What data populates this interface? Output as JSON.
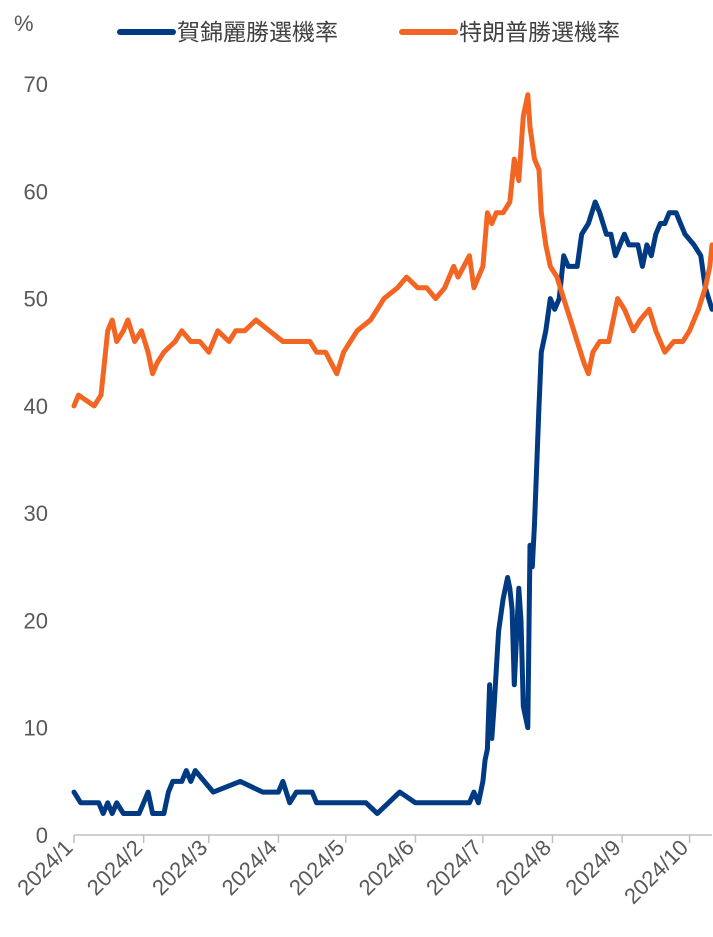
{
  "chart_data": {
    "type": "line",
    "title": "",
    "ylabel": "%",
    "xlabel": "",
    "ylim": [
      0,
      70
    ],
    "yticks": [
      "0",
      "10",
      "20",
      "30",
      "40",
      "50",
      "60",
      "70"
    ],
    "categories": [
      "2024/1",
      "2024/2",
      "2024/3",
      "2024/4",
      "2024/5",
      "2024/6",
      "2024/7",
      "2024/8",
      "2024/9",
      "2024/10"
    ],
    "grid": false,
    "legend_position": "top",
    "series": [
      {
        "name": "賀錦麗勝選機率",
        "color": "#003A82",
        "points": [
          [
            "2024-01-01",
            4
          ],
          [
            "2024-01-04",
            3
          ],
          [
            "2024-01-12",
            3
          ],
          [
            "2024-01-14",
            2
          ],
          [
            "2024-01-16",
            3
          ],
          [
            "2024-01-18",
            2
          ],
          [
            "2024-01-20",
            3
          ],
          [
            "2024-01-23",
            2
          ],
          [
            "2024-01-30",
            2
          ],
          [
            "2024-02-01",
            3
          ],
          [
            "2024-02-03",
            4
          ],
          [
            "2024-02-05",
            2
          ],
          [
            "2024-02-10",
            2
          ],
          [
            "2024-02-12",
            4
          ],
          [
            "2024-02-14",
            5
          ],
          [
            "2024-02-18",
            5
          ],
          [
            "2024-02-20",
            6
          ],
          [
            "2024-02-22",
            5
          ],
          [
            "2024-02-24",
            6
          ],
          [
            "2024-02-28",
            5
          ],
          [
            "2024-03-03",
            4
          ],
          [
            "2024-03-15",
            5
          ],
          [
            "2024-03-25",
            4
          ],
          [
            "2024-04-01",
            4
          ],
          [
            "2024-04-03",
            5
          ],
          [
            "2024-04-06",
            3
          ],
          [
            "2024-04-09",
            4
          ],
          [
            "2024-04-16",
            4
          ],
          [
            "2024-04-18",
            3
          ],
          [
            "2024-05-01",
            3
          ],
          [
            "2024-05-10",
            3
          ],
          [
            "2024-05-15",
            2
          ],
          [
            "2024-05-20",
            3
          ],
          [
            "2024-05-25",
            4
          ],
          [
            "2024-06-01",
            3
          ],
          [
            "2024-06-10",
            3
          ],
          [
            "2024-06-15",
            3
          ],
          [
            "2024-06-25",
            3
          ],
          [
            "2024-06-27",
            4
          ],
          [
            "2024-06-29",
            3
          ],
          [
            "2024-07-01",
            5
          ],
          [
            "2024-07-02",
            7
          ],
          [
            "2024-07-03",
            8
          ],
          [
            "2024-07-04",
            14
          ],
          [
            "2024-07-05",
            9
          ],
          [
            "2024-07-06",
            12
          ],
          [
            "2024-07-08",
            19
          ],
          [
            "2024-07-10",
            22
          ],
          [
            "2024-07-12",
            24
          ],
          [
            "2024-07-13",
            23
          ],
          [
            "2024-07-14",
            21
          ],
          [
            "2024-07-15",
            14
          ],
          [
            "2024-07-17",
            23
          ],
          [
            "2024-07-18",
            20
          ],
          [
            "2024-07-19",
            12
          ],
          [
            "2024-07-21",
            10
          ],
          [
            "2024-07-22",
            27
          ],
          [
            "2024-07-23",
            25
          ],
          [
            "2024-07-24",
            29
          ],
          [
            "2024-07-26",
            40
          ],
          [
            "2024-07-27",
            45
          ],
          [
            "2024-07-29",
            47
          ],
          [
            "2024-07-31",
            50
          ],
          [
            "2024-08-02",
            49
          ],
          [
            "2024-08-04",
            50
          ],
          [
            "2024-08-06",
            54
          ],
          [
            "2024-08-08",
            53
          ],
          [
            "2024-08-12",
            53
          ],
          [
            "2024-08-14",
            56
          ],
          [
            "2024-08-17",
            57
          ],
          [
            "2024-08-20",
            59
          ],
          [
            "2024-08-22",
            58
          ],
          [
            "2024-08-25",
            56
          ],
          [
            "2024-08-27",
            56
          ],
          [
            "2024-08-29",
            54
          ],
          [
            "2024-08-31",
            55
          ],
          [
            "2024-09-02",
            56
          ],
          [
            "2024-09-04",
            55
          ],
          [
            "2024-09-08",
            55
          ],
          [
            "2024-09-10",
            53
          ],
          [
            "2024-09-12",
            55
          ],
          [
            "2024-09-14",
            54
          ],
          [
            "2024-09-16",
            56
          ],
          [
            "2024-09-18",
            57
          ],
          [
            "2024-09-20",
            57
          ],
          [
            "2024-09-22",
            58
          ],
          [
            "2024-09-25",
            58
          ],
          [
            "2024-09-27",
            57
          ],
          [
            "2024-09-29",
            56
          ],
          [
            "2024-10-03",
            55
          ],
          [
            "2024-10-06",
            54
          ],
          [
            "2024-10-08",
            51
          ],
          [
            "2024-10-11",
            49
          ]
        ]
      },
      {
        "name": "特朗普勝選機率",
        "color": "#F26522",
        "points": [
          [
            "2024-01-01",
            40
          ],
          [
            "2024-01-03",
            41
          ],
          [
            "2024-01-10",
            40
          ],
          [
            "2024-01-13",
            41
          ],
          [
            "2024-01-15",
            45
          ],
          [
            "2024-01-16",
            47
          ],
          [
            "2024-01-18",
            48
          ],
          [
            "2024-01-20",
            46
          ],
          [
            "2024-01-23",
            47
          ],
          [
            "2024-01-25",
            48
          ],
          [
            "2024-01-28",
            46
          ],
          [
            "2024-01-31",
            47
          ],
          [
            "2024-02-03",
            45
          ],
          [
            "2024-02-05",
            43
          ],
          [
            "2024-02-07",
            44
          ],
          [
            "2024-02-10",
            45
          ],
          [
            "2024-02-15",
            46
          ],
          [
            "2024-02-18",
            47
          ],
          [
            "2024-02-22",
            46
          ],
          [
            "2024-02-26",
            46
          ],
          [
            "2024-03-01",
            45
          ],
          [
            "2024-03-05",
            47
          ],
          [
            "2024-03-10",
            46
          ],
          [
            "2024-03-13",
            47
          ],
          [
            "2024-03-17",
            47
          ],
          [
            "2024-03-22",
            48
          ],
          [
            "2024-03-28",
            47
          ],
          [
            "2024-04-03",
            46
          ],
          [
            "2024-04-09",
            46
          ],
          [
            "2024-04-15",
            46
          ],
          [
            "2024-04-18",
            45
          ],
          [
            "2024-04-22",
            45
          ],
          [
            "2024-04-27",
            43
          ],
          [
            "2024-04-30",
            45
          ],
          [
            "2024-05-03",
            46
          ],
          [
            "2024-05-06",
            47
          ],
          [
            "2024-05-12",
            48
          ],
          [
            "2024-05-15",
            49
          ],
          [
            "2024-05-18",
            50
          ],
          [
            "2024-05-24",
            51
          ],
          [
            "2024-05-28",
            52
          ],
          [
            "2024-06-02",
            51
          ],
          [
            "2024-06-06",
            51
          ],
          [
            "2024-06-10",
            50
          ],
          [
            "2024-06-14",
            51
          ],
          [
            "2024-06-18",
            53
          ],
          [
            "2024-06-20",
            52
          ],
          [
            "2024-06-25",
            54
          ],
          [
            "2024-06-27",
            51
          ],
          [
            "2024-07-01",
            53
          ],
          [
            "2024-07-03",
            58
          ],
          [
            "2024-07-05",
            57
          ],
          [
            "2024-07-07",
            58
          ],
          [
            "2024-07-10",
            58
          ],
          [
            "2024-07-13",
            59
          ],
          [
            "2024-07-15",
            63
          ],
          [
            "2024-07-17",
            61
          ],
          [
            "2024-07-19",
            67
          ],
          [
            "2024-07-21",
            69
          ],
          [
            "2024-07-22",
            66
          ],
          [
            "2024-07-24",
            63
          ],
          [
            "2024-07-26",
            62
          ],
          [
            "2024-07-27",
            58
          ],
          [
            "2024-07-29",
            55
          ],
          [
            "2024-07-31",
            53
          ],
          [
            "2024-08-03",
            52
          ],
          [
            "2024-08-06",
            50
          ],
          [
            "2024-08-09",
            48
          ],
          [
            "2024-08-12",
            46
          ],
          [
            "2024-08-15",
            44
          ],
          [
            "2024-08-17",
            43
          ],
          [
            "2024-08-19",
            45
          ],
          [
            "2024-08-22",
            46
          ],
          [
            "2024-08-26",
            46
          ],
          [
            "2024-08-28",
            48
          ],
          [
            "2024-08-30",
            50
          ],
          [
            "2024-09-02",
            49
          ],
          [
            "2024-09-06",
            47
          ],
          [
            "2024-09-09",
            48
          ],
          [
            "2024-09-13",
            49
          ],
          [
            "2024-09-16",
            47
          ],
          [
            "2024-09-20",
            45
          ],
          [
            "2024-09-24",
            46
          ],
          [
            "2024-09-28",
            46
          ],
          [
            "2024-10-01",
            47
          ],
          [
            "2024-10-03",
            48
          ],
          [
            "2024-10-05",
            49
          ],
          [
            "2024-10-08",
            51
          ],
          [
            "2024-10-10",
            53
          ],
          [
            "2024-10-11",
            55
          ]
        ]
      }
    ]
  }
}
